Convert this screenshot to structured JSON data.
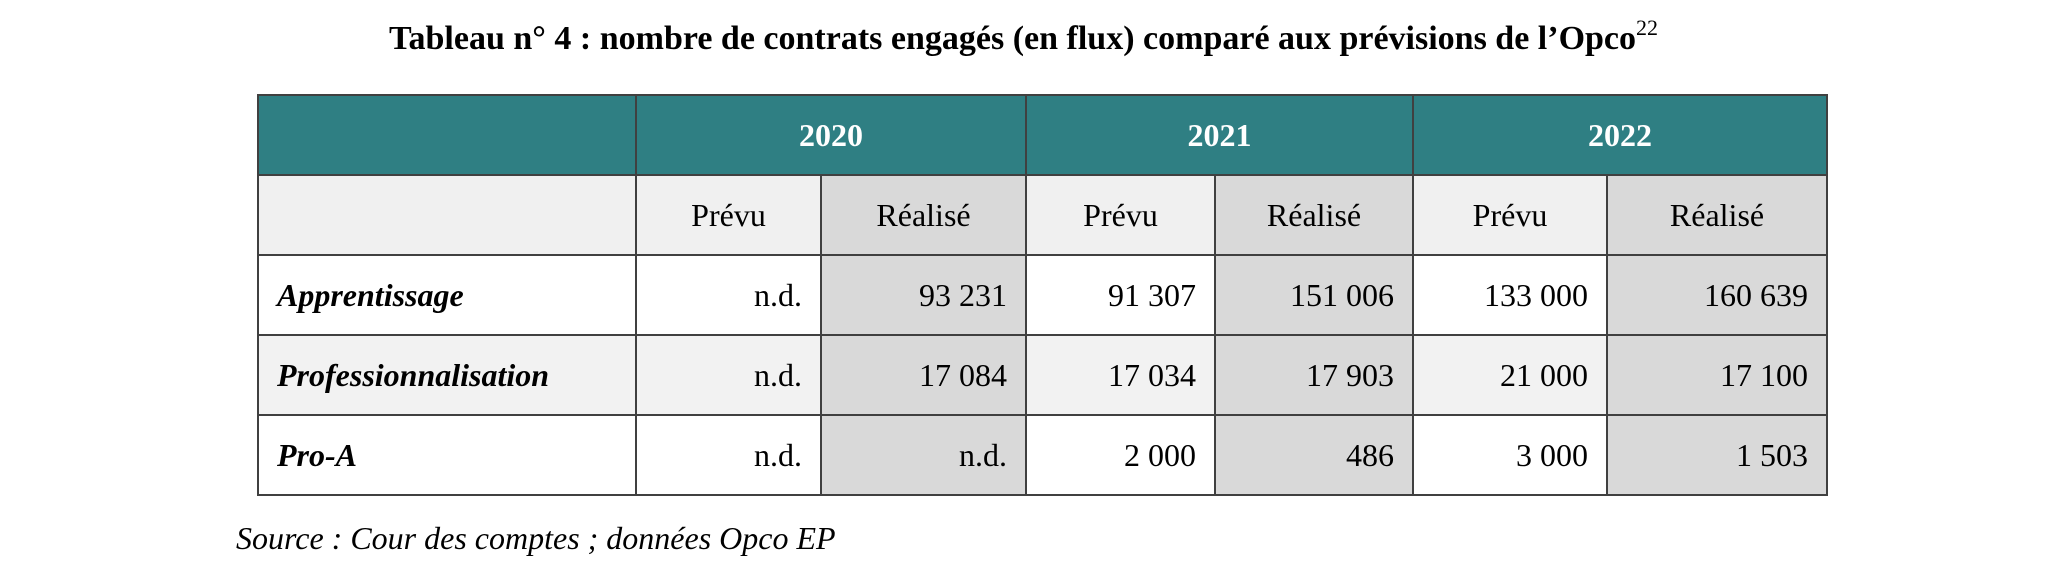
{
  "title": {
    "text": "Tableau n° 4 :  nombre de contrats engagés (en flux) comparé aux prévisions de l’Opco",
    "footnote": "22"
  },
  "table": {
    "years": [
      "2020",
      "2021",
      "2022"
    ],
    "subheaders": [
      "Prévu",
      "Réalisé",
      "Prévu",
      "Réalisé",
      "Prévu",
      "Réalisé"
    ],
    "rows": [
      {
        "label": "Apprentissage",
        "values": [
          "n.d.",
          "93 231",
          "91 307",
          "151 006",
          "133 000",
          "160 639"
        ]
      },
      {
        "label": "Professionnalisation",
        "values": [
          "n.d.",
          "17 084",
          "17 034",
          "17 903",
          "21 000",
          "17 100"
        ]
      },
      {
        "label": "Pro-A",
        "values": [
          "n.d.",
          "n.d.",
          "2 000",
          "486",
          "3 000",
          "1 503"
        ]
      }
    ]
  },
  "source": "Source : Cour des comptes ; données Opco EP"
}
